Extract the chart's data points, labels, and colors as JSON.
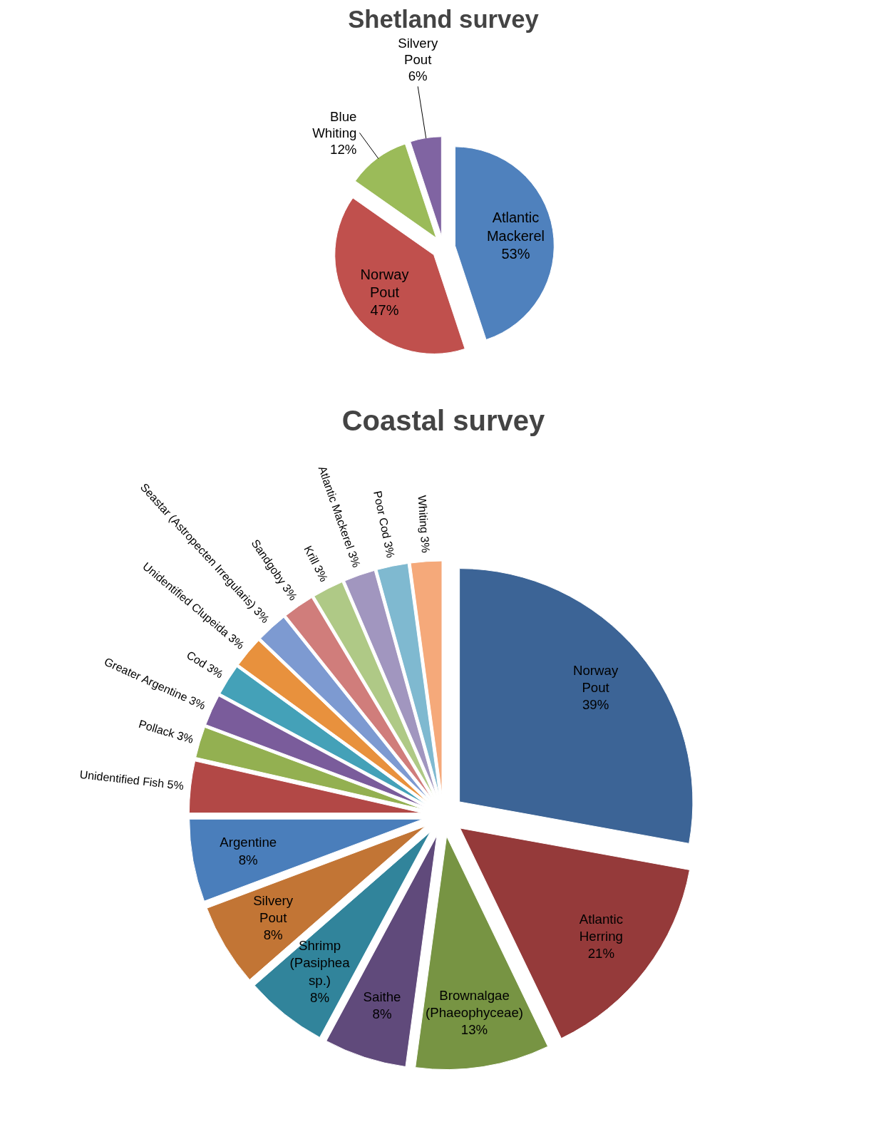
{
  "chart_data": [
    {
      "type": "pie",
      "title": "Shetland survey",
      "categories": [
        "Atlantic Mackerel",
        "Norway Pout",
        "Blue Whiting",
        "Silvery Pout"
      ],
      "values": [
        53,
        47,
        12,
        6
      ],
      "value_labels": [
        "53%",
        "47%",
        "12%",
        "6%"
      ],
      "colors": [
        "#4f81bd",
        "#c0504d",
        "#9bbb59",
        "#8064a2"
      ]
    },
    {
      "type": "pie",
      "title": "Coastal survey",
      "categories": [
        "Norway Pout",
        "Atlantic Herring",
        "Brownalgae (Phaeophyceae)",
        "Saithe",
        "Shrimp (Pasiphea sp.)",
        "Silvery Pout",
        "Argentine",
        "Unidentified Fish",
        "Pollack",
        "Greater Argentine",
        "Cod",
        "Unidentified Clupeida",
        "Seastar (Astropecten Irregularis)",
        "Sandgoby",
        "Krill",
        "Atlantic Mackerel",
        "Poor Cod",
        "Whiting"
      ],
      "values": [
        39,
        21,
        13,
        8,
        8,
        8,
        8,
        5,
        3,
        3,
        3,
        3,
        3,
        3,
        3,
        3,
        3,
        3
      ],
      "value_labels": [
        "39%",
        "21%",
        "13%",
        "8%",
        "8%",
        "8%",
        "8%",
        "5%",
        "3%",
        "3%",
        "3%",
        "3%",
        "3%",
        "3%",
        "3%",
        "3%",
        "3%",
        "3%"
      ],
      "colors": [
        "#3c6496",
        "#953a3a",
        "#779443",
        "#604a7b",
        "#31849b",
        "#c27535",
        "#4a7ebb",
        "#b24846",
        "#93b051",
        "#7a5c9b",
        "#44a1b8",
        "#e8913d",
        "#7d9ad1",
        "#d07d7b",
        "#afc986",
        "#a196bf",
        "#7fb9d0",
        "#f5a97a"
      ]
    }
  ]
}
